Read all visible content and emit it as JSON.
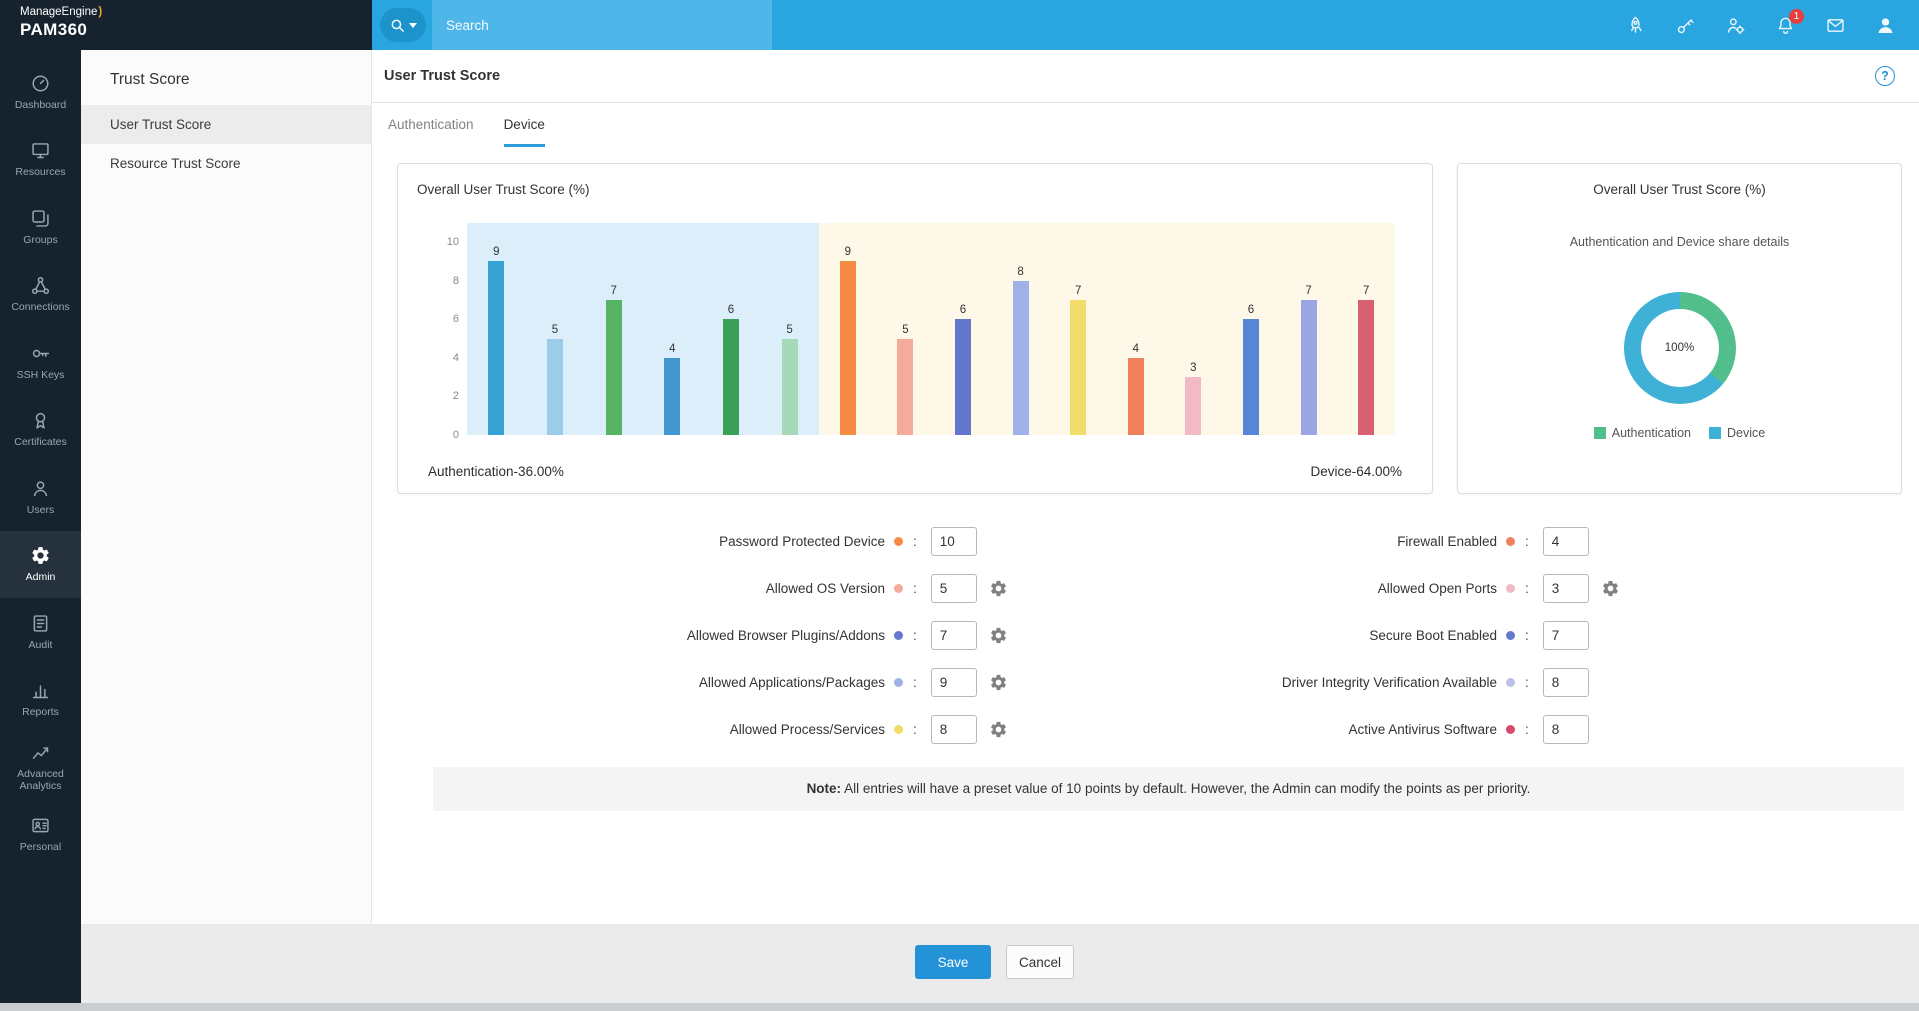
{
  "brand": {
    "name": "ManageEngine",
    "product": "PAM360"
  },
  "ui_colors": {
    "topbar": "#29a6e0",
    "sidebar": "#16232e",
    "accent_blue": "#2492d6",
    "tab_underline": "#2e9cd9",
    "badge_red": "#e53e3e"
  },
  "topbar": {
    "search_placeholder": "Search",
    "icons": [
      {
        "name": "rocket-icon"
      },
      {
        "name": "key-icon"
      },
      {
        "name": "user-settings-icon"
      },
      {
        "name": "notification-bell-icon",
        "badge": "1"
      },
      {
        "name": "mail-icon"
      },
      {
        "name": "user-profile-icon"
      }
    ]
  },
  "sidebar": {
    "items": [
      {
        "icon": "dashboard-icon",
        "label": "Dashboard"
      },
      {
        "icon": "resources-icon",
        "label": "Resources"
      },
      {
        "icon": "groups-icon",
        "label": "Groups"
      },
      {
        "icon": "connections-icon",
        "label": "Connections"
      },
      {
        "icon": "ssh-keys-icon",
        "label": "SSH Keys"
      },
      {
        "icon": "certificates-icon",
        "label": "Certificates"
      },
      {
        "icon": "users-icon",
        "label": "Users"
      },
      {
        "icon": "admin-icon",
        "label": "Admin",
        "selected": true
      },
      {
        "icon": "audit-icon",
        "label": "Audit"
      },
      {
        "icon": "reports-icon",
        "label": "Reports"
      },
      {
        "icon": "advanced-analytics-icon",
        "label": "Advanced Analytics"
      },
      {
        "icon": "personal-icon",
        "label": "Personal"
      }
    ]
  },
  "subnav": {
    "title": "Trust Score",
    "items": [
      {
        "label": "User Trust Score",
        "selected": true
      },
      {
        "label": "Resource Trust Score"
      }
    ]
  },
  "page": {
    "title": "User Trust Score",
    "tabs": [
      {
        "label": "Authentication",
        "active": false
      },
      {
        "label": "Device",
        "active": true
      }
    ]
  },
  "chart_data": [
    {
      "type": "bar",
      "title": "Overall User Trust Score (%)",
      "ylim": [
        0,
        10
      ],
      "yticks": [
        0,
        2,
        4,
        6,
        8,
        10
      ],
      "groups": [
        {
          "name": "Authentication",
          "share_label": "Authentication-36.00%",
          "background": "#ddeefb",
          "bars": [
            {
              "value": 9,
              "color": "#35a2d6"
            },
            {
              "value": 5,
              "color": "#9bcde8"
            },
            {
              "value": 7,
              "color": "#57b467"
            },
            {
              "value": 4,
              "color": "#4496cf"
            },
            {
              "value": 6,
              "color": "#3aa055"
            },
            {
              "value": 5,
              "color": "#a6d9b5"
            }
          ]
        },
        {
          "name": "Device",
          "share_label": "Device-64.00%",
          "background": "#fdf8e7",
          "bars": [
            {
              "value": 9,
              "color": "#f58a44"
            },
            {
              "value": 5,
              "color": "#f5ab9b"
            },
            {
              "value": 6,
              "color": "#6377cc"
            },
            {
              "value": 8,
              "color": "#9fb2e8"
            },
            {
              "value": 7,
              "color": "#f2dd6a"
            },
            {
              "value": 4,
              "color": "#f0815d"
            },
            {
              "value": 3,
              "color": "#f2bac6"
            },
            {
              "value": 6,
              "color": "#5886d6"
            },
            {
              "value": 7,
              "color": "#9aa7e2"
            },
            {
              "value": 7,
              "color": "#d9606f"
            }
          ]
        }
      ]
    },
    {
      "type": "donut",
      "title": "Overall User Trust Score (%)",
      "subtitle": "Authentication and Device share details",
      "center_label": "100%",
      "segments": [
        {
          "label": "Authentication",
          "value": 36,
          "color": "#52be8b"
        },
        {
          "label": "Device",
          "value": 64,
          "color": "#3fb0d6"
        }
      ]
    }
  ],
  "form": {
    "separator": ":",
    "left": [
      {
        "label": "Password Protected Device",
        "dot": "#f58a44",
        "value": "10",
        "gear": false
      },
      {
        "label": "Allowed OS Version",
        "dot": "#f5ab9b",
        "value": "5",
        "gear": true
      },
      {
        "label": "Allowed Browser Plugins/Addons",
        "dot": "#6377cc",
        "value": "7",
        "gear": true
      },
      {
        "label": "Allowed Applications/Packages",
        "dot": "#9fb2e8",
        "value": "9",
        "gear": true
      },
      {
        "label": "Allowed Process/Services",
        "dot": "#f2dd6a",
        "value": "8",
        "gear": true
      }
    ],
    "right": [
      {
        "label": "Firewall Enabled",
        "dot": "#f0815d",
        "value": "4",
        "gear": false
      },
      {
        "label": "Allowed Open Ports",
        "dot": "#f2bac6",
        "value": "3",
        "gear": true
      },
      {
        "label": "Secure Boot Enabled",
        "dot": "#6377cc",
        "value": "7",
        "gear": false
      },
      {
        "label": "Driver Integrity Verification Available",
        "dot": "#b9c1e8",
        "value": "8",
        "gear": false
      },
      {
        "label": "Active Antivirus Software",
        "dot": "#d94868",
        "value": "8",
        "gear": false
      }
    ]
  },
  "note": {
    "prefix": "Note:",
    "text": " All entries will have a preset value of 10 points by default. However, the Admin can modify the points as per priority."
  },
  "actions": {
    "save": "Save",
    "cancel": "Cancel"
  }
}
